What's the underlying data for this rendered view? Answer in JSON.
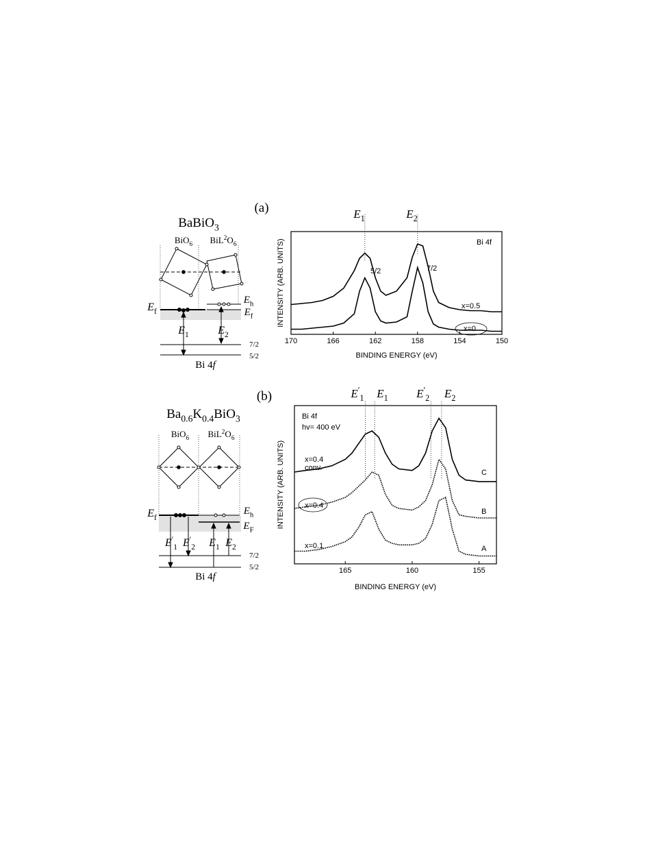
{
  "panels": [
    {
      "label": "(a)",
      "diagram": {
        "labels": [
          [
            "BaBiO",
            "3"
          ],
          [
            "BiO",
            "6"
          ],
          [
            "BiL",
            "2",
            "O",
            "6"
          ],
          [
            "E",
            "f"
          ],
          [
            "E",
            "h"
          ],
          [
            "E",
            "f"
          ],
          [
            "E",
            "1"
          ],
          [
            "E",
            "2"
          ],
          [
            "7/2"
          ],
          [
            "5/2"
          ],
          [
            "Bi 4",
            "f"
          ]
        ]
      }
    },
    {
      "label": "(b)",
      "diagram": {
        "labels": [
          [
            "Ba",
            "0.6",
            "K",
            "0.4",
            "BiO",
            "3"
          ],
          [
            "BiO",
            "6"
          ],
          [
            "BiL",
            "2",
            "O",
            "6"
          ],
          [
            "E",
            "f"
          ],
          [
            "E",
            "h"
          ],
          [
            "E",
            "F"
          ],
          [
            "E",
            "′",
            "1"
          ],
          [
            "E",
            "′",
            "2"
          ],
          [
            "E",
            "1"
          ],
          [
            "E",
            "2"
          ],
          [
            "7/2"
          ],
          [
            "5/2"
          ],
          [
            "Bi 4",
            "f"
          ]
        ]
      }
    }
  ],
  "chart_data": [
    {
      "type": "line",
      "x_label": "BINDING ENERGY (eV)",
      "y_label": "INTENSITY (ARB. UNITS)",
      "xlim": [
        170,
        150
      ],
      "xticks": [
        170,
        166,
        162,
        158,
        154,
        150
      ],
      "ylim": [
        0,
        1
      ],
      "x": [
        170,
        169,
        168,
        167,
        166,
        165,
        164,
        163.5,
        163,
        162.5,
        162,
        161.5,
        161,
        160,
        159,
        158.5,
        158,
        157.5,
        157,
        156.5,
        156,
        155,
        154,
        153,
        152,
        151,
        150
      ],
      "series": [
        {
          "name": "x=0.5",
          "color": "#000000",
          "values": [
            0.29,
            0.3,
            0.31,
            0.33,
            0.37,
            0.45,
            0.62,
            0.74,
            0.79,
            0.74,
            0.55,
            0.42,
            0.38,
            0.42,
            0.55,
            0.75,
            0.88,
            0.86,
            0.66,
            0.42,
            0.31,
            0.26,
            0.24,
            0.23,
            0.23,
            0.22,
            0.22
          ]
        },
        {
          "name": "x=0",
          "color": "#000000",
          "values": [
            0.05,
            0.05,
            0.06,
            0.07,
            0.08,
            0.11,
            0.2,
            0.42,
            0.55,
            0.45,
            0.22,
            0.13,
            0.11,
            0.12,
            0.17,
            0.42,
            0.65,
            0.5,
            0.22,
            0.1,
            0.07,
            0.05,
            0.04,
            0.04,
            0.04,
            0.03,
            0.03
          ]
        }
      ],
      "annotations": [
        "Bi 4f",
        "5/2",
        "7/2"
      ],
      "markers": [
        {
          "label": [
            "E",
            "1"
          ],
          "x": 163
        },
        {
          "label": [
            "E",
            "2"
          ],
          "x": 158
        }
      ]
    },
    {
      "type": "line",
      "x_label": "BINDING ENERGY (eV)",
      "y_label": "INTENSITY (ARB. UNITS)",
      "xlim": [
        168.8,
        153.7
      ],
      "xticks": [
        165,
        160,
        155
      ],
      "ylim": [
        0,
        1
      ],
      "x": [
        168.8,
        168,
        167,
        166,
        165,
        164.5,
        164,
        163.5,
        163,
        162.5,
        162,
        161.5,
        161,
        160,
        159.5,
        159,
        158.5,
        158,
        157.5,
        157,
        156.5,
        156,
        155,
        154,
        153.7
      ],
      "series": [
        {
          "name": "C",
          "color": "#000000",
          "values": [
            0.58,
            0.59,
            0.6,
            0.62,
            0.66,
            0.7,
            0.76,
            0.82,
            0.84,
            0.8,
            0.7,
            0.63,
            0.6,
            0.59,
            0.62,
            0.7,
            0.84,
            0.92,
            0.86,
            0.66,
            0.56,
            0.53,
            0.52,
            0.52,
            0.52
          ]
        },
        {
          "name": "B",
          "color": "#000000",
          "values": [
            0.35,
            0.36,
            0.37,
            0.39,
            0.42,
            0.45,
            0.49,
            0.53,
            0.58,
            0.56,
            0.44,
            0.37,
            0.35,
            0.34,
            0.36,
            0.4,
            0.5,
            0.66,
            0.6,
            0.4,
            0.31,
            0.3,
            0.29,
            0.29,
            0.29
          ]
        },
        {
          "name": "A",
          "color": "#000000",
          "values": [
            0.08,
            0.08,
            0.09,
            0.11,
            0.14,
            0.17,
            0.23,
            0.31,
            0.33,
            0.22,
            0.15,
            0.13,
            0.12,
            0.12,
            0.13,
            0.16,
            0.25,
            0.4,
            0.42,
            0.22,
            0.08,
            0.06,
            0.05,
            0.05,
            0.05
          ]
        }
      ],
      "annotations": [
        "Bi 4f",
        "hv= 400 eV",
        "x=0.4",
        "conv.",
        "x=0.4",
        "x=0.1"
      ],
      "markers": [
        {
          "label": [
            "E",
            "′",
            "1"
          ],
          "x": 163.5
        },
        {
          "label": [
            "E",
            "1"
          ],
          "x": 162.8
        },
        {
          "label": [
            "E",
            "′",
            "2"
          ],
          "x": 158.6
        },
        {
          "label": [
            "E",
            "2"
          ],
          "x": 157.8
        }
      ]
    }
  ]
}
